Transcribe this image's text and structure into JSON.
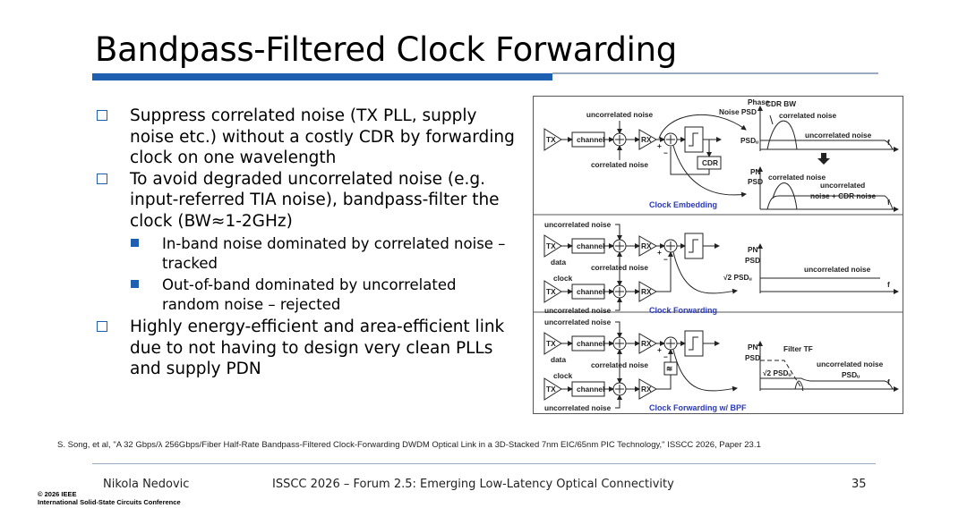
{
  "title": "Bandpass-Filtered Clock Forwarding",
  "accent_color": "#1f5fb0",
  "bullets": [
    {
      "text": "Suppress correlated noise (TX PLL, supply noise etc.) without a costly CDR by forwarding clock on one wavelength"
    },
    {
      "text": "To avoid degraded uncorrelated noise (e.g. input-referred TIA noise), bandpass-filter the clock (BW≈1-2GHz)",
      "sub": [
        "In-band noise dominated by correlated noise – tracked",
        "Out-of-band dominated by uncorrelated random noise – rejected"
      ]
    },
    {
      "text": "Highly energy-efficient and area-efficient link due to not having to design very clean PLLs and supply PDN"
    }
  ],
  "diagram": {
    "common": {
      "tx": "TX",
      "rx": "RX",
      "channel": "channel",
      "uncorrelated_noise": "uncorrelated noise",
      "correlated_noise": "correlated noise",
      "data": "data",
      "clock": "clock",
      "f": "f",
      "plus": "+",
      "minus": "−"
    },
    "embedding": {
      "caption": "Clock Embedding",
      "cdr": "CDR",
      "plot1_ylabel_1": "Phase",
      "plot1_ylabel_2": "Noise PSD",
      "cdr_bw": "CDR BW",
      "psd_u": "PSDᵤ",
      "plot2_ylabel_1": "PN",
      "plot2_ylabel_2": "PSD",
      "uncorr_cdr_1": "uncorrelated",
      "uncorr_cdr_2": "noise + CDR noise"
    },
    "forwarding": {
      "caption": "Clock Forwarding",
      "sqrt2_psd": "√2 PSDᵤ",
      "ylabel_1": "PN",
      "ylabel_2": "PSD"
    },
    "bpf": {
      "caption": "Clock Forwarding w/ BPF",
      "filter_tf": "Filter TF",
      "sqrt2_psd": "√2 PSDᵤ",
      "psd_u": "PSDᵤ",
      "ylabel_1": "PN",
      "ylabel_2": "PSD",
      "filter_symbol": "≋"
    }
  },
  "reference": "S. Song, et al, \"A 32 Gbps/λ 256Gbps/Fiber Half-Rate Bandpass-Filtered Clock-Forwarding DWDM Optical Link in a 3D-Stacked 7nm EIC/65nm PIC Technology,\" ISSCC 2026, Paper 23.1",
  "footer": {
    "presenter": "Nikola Nedovic",
    "event": "ISSCC 2026 – Forum 2.5: Emerging Low-Latency Optical Connectivity",
    "page": "35",
    "copyright": "© 2026 IEEE",
    "org": "International Solid-State Circuits Conference"
  }
}
